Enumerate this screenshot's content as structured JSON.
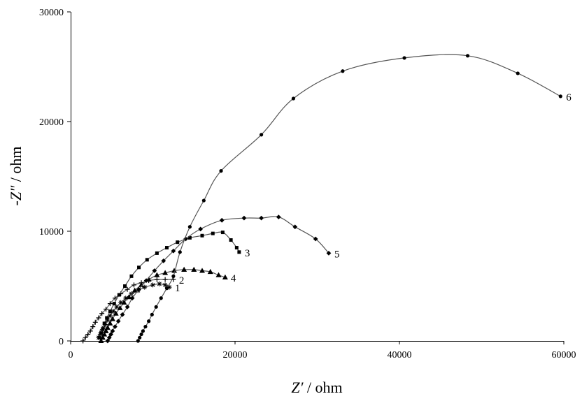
{
  "chart_data": {
    "type": "scatter",
    "xlabel": {
      "symbol": "Z′",
      "unit": " / ohm"
    },
    "ylabel": {
      "symbol": "-Z″",
      "unit": " / ohm"
    },
    "xlim": [
      0,
      60000
    ],
    "ylim": [
      0,
      30000
    ],
    "x_ticks": [
      {
        "value": 0,
        "label": "0"
      },
      {
        "value": 20000,
        "label": "20000"
      },
      {
        "value": 40000,
        "label": "40000"
      },
      {
        "value": 60000,
        "label": "60000"
      }
    ],
    "y_ticks": [
      {
        "value": 0,
        "label": "0"
      },
      {
        "value": 10000,
        "label": "10000"
      },
      {
        "value": 20000,
        "label": "20000"
      },
      {
        "value": 30000,
        "label": "30000"
      }
    ],
    "grid": false,
    "series": [
      {
        "name": "1",
        "marker": "star",
        "points": [
          [
            3400,
            300
          ],
          [
            3600,
            600
          ],
          [
            3800,
            900
          ],
          [
            4000,
            1200
          ],
          [
            4200,
            1500
          ],
          [
            4500,
            1900
          ],
          [
            4800,
            2300
          ],
          [
            5200,
            2700
          ],
          [
            5600,
            3100
          ],
          [
            6100,
            3500
          ],
          [
            6700,
            3900
          ],
          [
            7400,
            4300
          ],
          [
            8200,
            4600
          ],
          [
            9000,
            4900
          ],
          [
            10000,
            5100
          ],
          [
            10800,
            5200
          ],
          [
            11500,
            5100
          ],
          [
            12000,
            4900
          ]
        ]
      },
      {
        "name": "2",
        "marker": "plus",
        "points": [
          [
            1500,
            0
          ],
          [
            1800,
            300
          ],
          [
            2100,
            600
          ],
          [
            2400,
            900
          ],
          [
            2700,
            1300
          ],
          [
            3000,
            1700
          ],
          [
            3400,
            2100
          ],
          [
            3800,
            2500
          ],
          [
            4300,
            2900
          ],
          [
            4800,
            3400
          ],
          [
            5400,
            3900
          ],
          [
            6100,
            4300
          ],
          [
            6900,
            4700
          ],
          [
            7700,
            5100
          ],
          [
            8600,
            5300
          ],
          [
            9500,
            5500
          ],
          [
            10500,
            5600
          ],
          [
            11500,
            5600
          ],
          [
            12500,
            5600
          ]
        ]
      },
      {
        "name": "3",
        "marker": "square",
        "points": [
          [
            3500,
            300
          ],
          [
            3700,
            700
          ],
          [
            3900,
            1100
          ],
          [
            4100,
            1600
          ],
          [
            4400,
            2100
          ],
          [
            4800,
            2700
          ],
          [
            5300,
            3400
          ],
          [
            5900,
            4200
          ],
          [
            6600,
            5000
          ],
          [
            7400,
            5900
          ],
          [
            8300,
            6700
          ],
          [
            9300,
            7400
          ],
          [
            10500,
            8000
          ],
          [
            11700,
            8500
          ],
          [
            13000,
            9000
          ],
          [
            14500,
            9400
          ],
          [
            16000,
            9600
          ],
          [
            17300,
            9800
          ],
          [
            18500,
            9900
          ],
          [
            19500,
            9200
          ],
          [
            20200,
            8500
          ],
          [
            20500,
            8100
          ]
        ]
      },
      {
        "name": "4",
        "marker": "triangle",
        "points": [
          [
            3700,
            0
          ],
          [
            3900,
            300
          ],
          [
            4100,
            600
          ],
          [
            4300,
            900
          ],
          [
            4500,
            1200
          ],
          [
            4800,
            1600
          ],
          [
            5100,
            2000
          ],
          [
            5500,
            2500
          ],
          [
            6000,
            3000
          ],
          [
            6500,
            3500
          ],
          [
            7100,
            4000
          ],
          [
            7800,
            4600
          ],
          [
            8600,
            5100
          ],
          [
            9500,
            5600
          ],
          [
            10500,
            6000
          ],
          [
            11500,
            6200
          ],
          [
            12600,
            6400
          ],
          [
            13800,
            6500
          ],
          [
            15000,
            6500
          ],
          [
            16000,
            6400
          ],
          [
            17000,
            6300
          ],
          [
            18000,
            6000
          ],
          [
            18800,
            5800
          ]
        ]
      },
      {
        "name": "5",
        "marker": "diamond",
        "points": [
          [
            4500,
            0
          ],
          [
            4700,
            300
          ],
          [
            4900,
            600
          ],
          [
            5100,
            900
          ],
          [
            5400,
            1300
          ],
          [
            5800,
            1800
          ],
          [
            6300,
            2400
          ],
          [
            6900,
            3100
          ],
          [
            7500,
            3900
          ],
          [
            8300,
            4700
          ],
          [
            9200,
            5500
          ],
          [
            10200,
            6400
          ],
          [
            11300,
            7300
          ],
          [
            12500,
            8200
          ],
          [
            14000,
            9300
          ],
          [
            15800,
            10200
          ],
          [
            18400,
            11000
          ],
          [
            21100,
            11200
          ],
          [
            23200,
            11200
          ],
          [
            25300,
            11300
          ],
          [
            27300,
            10400
          ],
          [
            29800,
            9300
          ],
          [
            31400,
            8000
          ]
        ]
      },
      {
        "name": "6",
        "marker": "circle",
        "points": [
          [
            8200,
            0
          ],
          [
            8400,
            300
          ],
          [
            8600,
            600
          ],
          [
            8800,
            900
          ],
          [
            9100,
            1300
          ],
          [
            9500,
            1800
          ],
          [
            9900,
            2400
          ],
          [
            10400,
            3100
          ],
          [
            11000,
            3900
          ],
          [
            11700,
            4800
          ],
          [
            12500,
            5900
          ],
          [
            13300,
            8100
          ],
          [
            14500,
            10400
          ],
          [
            16200,
            12800
          ],
          [
            18300,
            15500
          ],
          [
            23200,
            18800
          ],
          [
            27100,
            22100
          ],
          [
            33100,
            24600
          ],
          [
            40600,
            25800
          ],
          [
            48300,
            26000
          ],
          [
            54400,
            24400
          ],
          [
            59600,
            22300
          ]
        ]
      }
    ]
  }
}
